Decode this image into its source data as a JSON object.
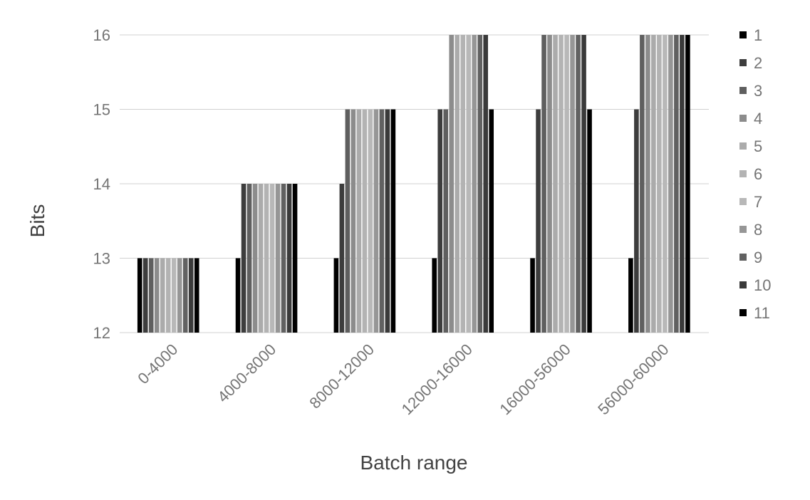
{
  "chart_data": {
    "type": "bar",
    "title": "",
    "xlabel": "Batch range",
    "ylabel": "Bits",
    "ylim": [
      12,
      16
    ],
    "yticks": [
      "12",
      "13",
      "14",
      "15",
      "16"
    ],
    "grid": true,
    "legend_position": "right",
    "categories": [
      "0-4000",
      "4000-8000",
      "8000-12000",
      "12000-16000",
      "16000-56000",
      "56000-60000"
    ],
    "series": [
      {
        "name": "1",
        "color": "#000000",
        "values": [
          13,
          13,
          13,
          13,
          13,
          13
        ]
      },
      {
        "name": "2",
        "color": "#3d3d3d",
        "values": [
          13,
          14,
          14,
          15,
          15,
          15
        ]
      },
      {
        "name": "3",
        "color": "#5f5f5f",
        "values": [
          13,
          14,
          15,
          15,
          16,
          16
        ]
      },
      {
        "name": "4",
        "color": "#8c8c8c",
        "values": [
          13,
          14,
          15,
          16,
          16,
          16
        ]
      },
      {
        "name": "5",
        "color": "#ababab",
        "values": [
          13,
          14,
          15,
          16,
          16,
          16
        ]
      },
      {
        "name": "6",
        "color": "#b3b3b3",
        "values": [
          13,
          14,
          15,
          16,
          16,
          16
        ]
      },
      {
        "name": "7",
        "color": "#b8b8b8",
        "values": [
          13,
          14,
          15,
          16,
          16,
          16
        ]
      },
      {
        "name": "8",
        "color": "#969696",
        "values": [
          13,
          14,
          15,
          16,
          16,
          16
        ]
      },
      {
        "name": "9",
        "color": "#616161",
        "values": [
          13,
          14,
          15,
          16,
          16,
          16
        ]
      },
      {
        "name": "10",
        "color": "#3a3a3a",
        "values": [
          13,
          14,
          15,
          16,
          16,
          16
        ]
      },
      {
        "name": "11",
        "color": "#000000",
        "values": [
          13,
          14,
          15,
          15,
          15,
          16
        ]
      }
    ]
  }
}
